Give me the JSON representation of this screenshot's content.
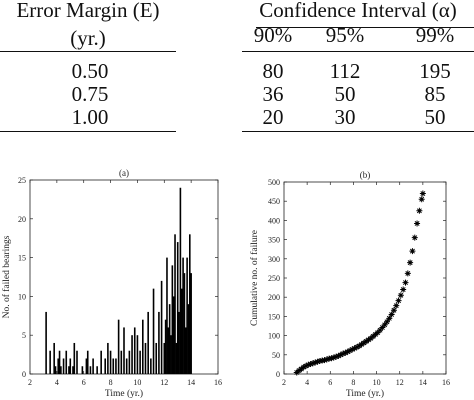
{
  "table": {
    "col1_header_line1": "Error Margin (E)",
    "col1_header_line2": "(yr.)",
    "ci_header": "Confidence Interval (α)",
    "levels": [
      "90%",
      "95%",
      "99%"
    ],
    "rows": [
      {
        "margin": "0.50",
        "v90": "80",
        "v95": "112",
        "v99": "195"
      },
      {
        "margin": "0.75",
        "v90": "36",
        "v95": "50",
        "v99": "85"
      },
      {
        "margin": "1.00",
        "v90": "20",
        "v95": "30",
        "v99": "50"
      }
    ]
  },
  "chart_data": [
    {
      "type": "bar",
      "title": "(a)",
      "xlabel": "Time (yr.)",
      "ylabel": "No. of failed bearings",
      "xlim": [
        2,
        16
      ],
      "ylim": [
        0,
        25
      ],
      "xticks": [
        "2",
        "4",
        "6",
        "8",
        "10",
        "12",
        "14",
        "16"
      ],
      "yticks": [
        "0",
        "5",
        "10",
        "15",
        "20",
        "25"
      ],
      "grid": false,
      "x": [
        3.2,
        3.5,
        3.8,
        3.9,
        4.1,
        4.2,
        4.3,
        4.5,
        4.7,
        4.9,
        5.0,
        5.2,
        5.3,
        5.5,
        5.9,
        6.2,
        6.3,
        6.5,
        6.7,
        7.0,
        7.3,
        7.6,
        7.8,
        8.0,
        8.2,
        8.4,
        8.6,
        8.8,
        9.0,
        9.2,
        9.4,
        9.6,
        9.8,
        10.0,
        10.2,
        10.4,
        10.6,
        10.8,
        11.0,
        11.2,
        11.4,
        11.6,
        11.8,
        12.0,
        12.1,
        12.2,
        12.3,
        12.4,
        12.5,
        12.6,
        12.7,
        12.8,
        12.9,
        13.0,
        13.1,
        13.2,
        13.3,
        13.4,
        13.5,
        13.6,
        13.7,
        13.8,
        13.9,
        14.0
      ],
      "values": [
        8,
        3,
        4,
        1,
        2,
        3,
        1,
        2,
        3,
        1,
        2,
        1,
        4,
        3,
        1,
        2,
        3,
        1,
        2,
        1,
        3,
        2,
        4,
        3,
        2,
        2,
        7,
        3,
        6,
        2,
        3,
        5,
        6,
        5,
        3,
        7,
        4,
        8,
        2,
        11,
        4,
        8,
        12,
        4,
        7,
        15,
        6,
        9,
        5,
        14,
        10,
        18,
        4,
        17,
        8,
        24,
        11,
        15,
        13,
        6,
        15,
        9,
        18,
        13
      ]
    },
    {
      "type": "scatter",
      "title": "(b)",
      "xlabel": "Time (yr.)",
      "ylabel": "Cumulative no. of failure",
      "xlim": [
        2,
        16
      ],
      "ylim": [
        0,
        500
      ],
      "xticks": [
        "2",
        "4",
        "6",
        "8",
        "10",
        "12",
        "14",
        "16"
      ],
      "yticks": [
        "0",
        "50",
        "100",
        "150",
        "200",
        "250",
        "300",
        "350",
        "400",
        "450",
        "500"
      ],
      "grid": false,
      "marker": "*",
      "x": [
        3.1,
        3.3,
        3.5,
        3.7,
        3.9,
        4.1,
        4.3,
        4.5,
        4.7,
        4.9,
        5.1,
        5.3,
        5.5,
        5.7,
        5.9,
        6.1,
        6.3,
        6.5,
        6.7,
        6.9,
        7.1,
        7.3,
        7.5,
        7.7,
        7.9,
        8.1,
        8.3,
        8.5,
        8.7,
        8.9,
        9.1,
        9.3,
        9.5,
        9.7,
        9.9,
        10.1,
        10.3,
        10.5,
        10.7,
        10.9,
        11.1,
        11.3,
        11.5,
        11.7,
        11.9,
        12.1,
        12.3,
        12.5,
        12.7,
        12.9,
        13.1,
        13.3,
        13.5,
        13.7,
        13.9,
        14.0
      ],
      "values": [
        4,
        9,
        13,
        18,
        21,
        24,
        26,
        28,
        30,
        32,
        34,
        35,
        36,
        38,
        40,
        41,
        43,
        45,
        47,
        50,
        53,
        55,
        58,
        61,
        64,
        67,
        70,
        73,
        77,
        81,
        85,
        89,
        93,
        98,
        103,
        108,
        114,
        121,
        128,
        136,
        145,
        155,
        166,
        178,
        191,
        205,
        220,
        238,
        262,
        290,
        320,
        355,
        392,
        425,
        455,
        470
      ]
    }
  ]
}
